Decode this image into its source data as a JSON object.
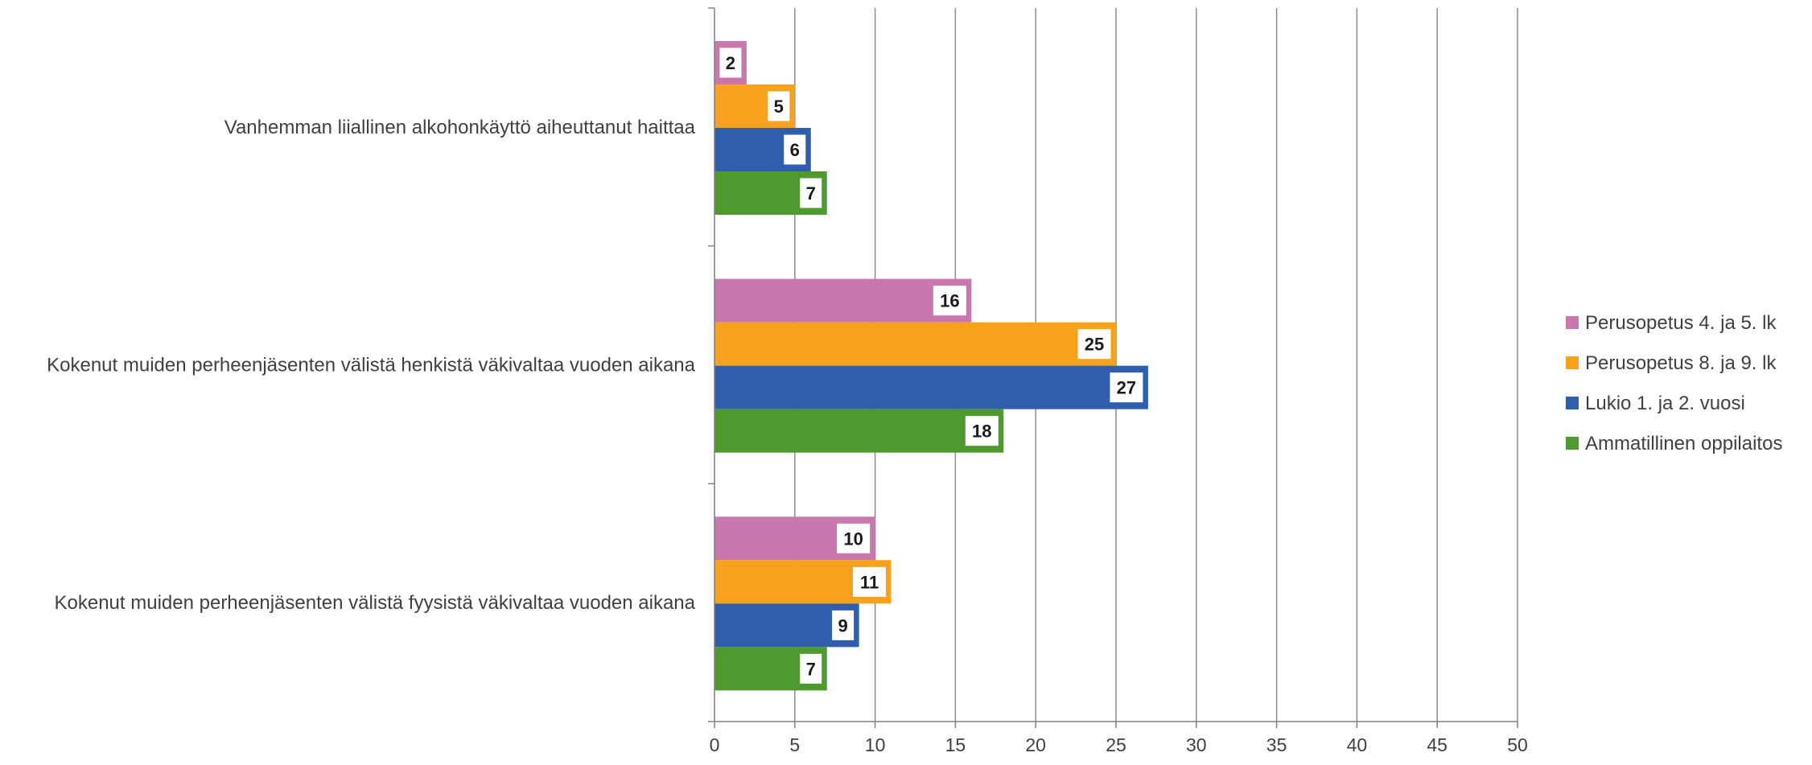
{
  "colors": {
    "grid": "#8c8c8c",
    "axis": "#808080",
    "text": "#404040",
    "label_box": "#ffffff"
  },
  "chart_data": {
    "type": "bar",
    "orientation": "horizontal",
    "title": "",
    "xlabel": "",
    "ylabel": "",
    "xlim": [
      0,
      50
    ],
    "x_ticks": [
      0,
      5,
      10,
      15,
      20,
      25,
      30,
      35,
      40,
      45,
      50
    ],
    "grid": true,
    "legend_position": "right",
    "categories": [
      "Vanhemman liiallinen alkohonkäyttö aiheuttanut haittaa",
      "Kokenut muiden perheenjäsenten välistä henkistä väkivaltaa vuoden aikana",
      "Kokenut muiden perheenjäsenten välistä fyysistä väkivaltaa vuoden aikana"
    ],
    "series": [
      {
        "name": "Perusopetus 4. ja 5. lk",
        "color": "#c978ad",
        "values": [
          2,
          16,
          10
        ]
      },
      {
        "name": "Perusopetus 8. ja 9. lk",
        "color": "#f7a21c",
        "values": [
          5,
          25,
          11
        ]
      },
      {
        "name": "Lukio 1. ja 2. vuosi",
        "color": "#2e5ead",
        "values": [
          6,
          27,
          9
        ]
      },
      {
        "name": "Ammatillinen oppilaitos",
        "color": "#4f9a2e",
        "values": [
          7,
          18,
          7
        ]
      }
    ]
  }
}
